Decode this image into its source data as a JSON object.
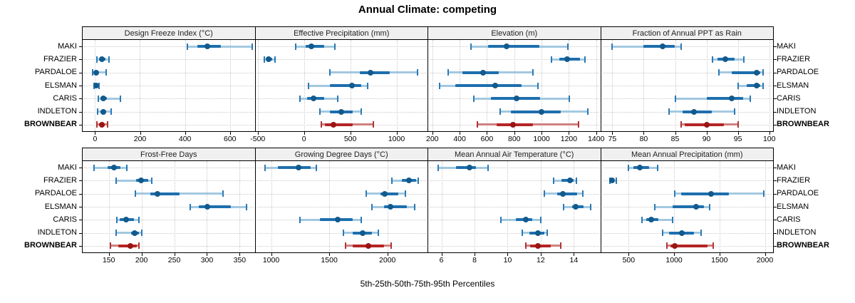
{
  "title": "Annual Climate: competing",
  "xlabel": "5th-25th-50th-75th-95th Percentiles",
  "percentiles": [
    "5th",
    "25th",
    "50th",
    "75th",
    "95th"
  ],
  "categories": [
    "MAKI",
    "FRAZIER",
    "PARDALOE",
    "ELSMAN",
    "CARIS",
    "INDLETON",
    "BROWNBEAR"
  ],
  "highlight_category": "BROWNBEAR",
  "colors": {
    "blue_whisker": "#a3c8e0",
    "blue_cap": "#2a7ab5",
    "blue_bar": "#1d6fae",
    "blue_dot": "#135a8c",
    "red_whisker": "#d08080",
    "red_cap": "#b03535",
    "red_bar": "#b52424",
    "red_dot": "#9a1414",
    "grid": "#c9c9c9",
    "strip_bg": "#f0f0f0"
  },
  "chart_data": [
    {
      "type": "scatter",
      "subtype": "percentile-dot-whisker",
      "title": "Design Freeze Index (°C)",
      "row": 0,
      "col": 0,
      "xlim": [
        -55,
        710
      ],
      "ticks": [
        0,
        200,
        400,
        600
      ],
      "tick_labels": [
        "0",
        "200",
        "400",
        "600"
      ],
      "series": [
        {
          "name": "MAKI",
          "values": [
            410,
            455,
            500,
            560,
            700
          ]
        },
        {
          "name": "FRAZIER",
          "values": [
            8,
            22,
            32,
            45,
            62
          ]
        },
        {
          "name": "PARDALOE",
          "values": [
            -10,
            0,
            6,
            16,
            48
          ]
        },
        {
          "name": "ELSMAN",
          "values": [
            -5,
            1,
            6,
            11,
            18
          ]
        },
        {
          "name": "CARIS",
          "values": [
            15,
            25,
            38,
            52,
            112
          ]
        },
        {
          "name": "INDLETON",
          "values": [
            12,
            25,
            36,
            50,
            73
          ]
        },
        {
          "name": "BROWNBEAR",
          "values": [
            8,
            20,
            32,
            43,
            56
          ]
        }
      ]
    },
    {
      "type": "scatter",
      "subtype": "percentile-dot-whisker",
      "title": "Effective Precipitation (mm)",
      "row": 0,
      "col": 1,
      "xlim": [
        -525,
        1335
      ],
      "ticks": [
        -500,
        0,
        500,
        1000
      ],
      "tick_labels": [
        "-500",
        "0",
        "500",
        "1000"
      ],
      "series": [
        {
          "name": "MAKI",
          "values": [
            -90,
            20,
            80,
            220,
            330
          ]
        },
        {
          "name": "FRAZIER",
          "values": [
            -430,
            -405,
            -385,
            -345,
            -315
          ]
        },
        {
          "name": "PARDALOE",
          "values": [
            280,
            600,
            720,
            930,
            1225
          ]
        },
        {
          "name": "ELSMAN",
          "values": [
            45,
            280,
            515,
            620,
            690
          ]
        },
        {
          "name": "CARIS",
          "values": [
            -45,
            30,
            105,
            215,
            365
          ]
        },
        {
          "name": "INDLETON",
          "values": [
            175,
            280,
            405,
            530,
            620
          ]
        },
        {
          "name": "BROWNBEAR",
          "values": [
            185,
            225,
            315,
            530,
            750
          ]
        }
      ]
    },
    {
      "type": "scatter",
      "subtype": "percentile-dot-whisker",
      "title": "Elevation (m)",
      "row": 0,
      "col": 2,
      "xlim": [
        170,
        1430
      ],
      "ticks": [
        200,
        400,
        600,
        800,
        1000,
        1200,
        1400
      ],
      "tick_labels": [
        "200",
        "400",
        "600",
        "800",
        "1000",
        "1200",
        "1400"
      ],
      "series": [
        {
          "name": "MAKI",
          "values": [
            485,
            610,
            745,
            985,
            1195
          ]
        },
        {
          "name": "FRAZIER",
          "values": [
            1070,
            1130,
            1185,
            1280,
            1320
          ]
        },
        {
          "name": "PARDALOE",
          "values": [
            315,
            420,
            570,
            685,
            935
          ]
        },
        {
          "name": "ELSMAN",
          "values": [
            255,
            370,
            660,
            855,
            975
          ]
        },
        {
          "name": "CARIS",
          "values": [
            505,
            630,
            815,
            990,
            1205
          ]
        },
        {
          "name": "INDLETON",
          "values": [
            695,
            775,
            1000,
            1140,
            1340
          ]
        },
        {
          "name": "BROWNBEAR",
          "values": [
            530,
            670,
            790,
            935,
            1270
          ]
        }
      ]
    },
    {
      "type": "scatter",
      "subtype": "percentile-dot-whisker",
      "title": "Fraction of Annual PPT as Rain",
      "row": 0,
      "col": 3,
      "xlim": [
        73.2,
        100.6
      ],
      "ticks": [
        75,
        80,
        85,
        90,
        95,
        100
      ],
      "tick_labels": [
        "75",
        "80",
        "85",
        "90",
        "95",
        "100"
      ],
      "series": [
        {
          "name": "MAKI",
          "values": [
            75,
            80,
            83,
            85,
            86
          ]
        },
        {
          "name": "FRAZIER",
          "values": [
            91,
            91.8,
            93,
            94.5,
            96
          ]
        },
        {
          "name": "PARDALOE",
          "values": [
            92,
            94,
            98,
            98.6,
            99
          ]
        },
        {
          "name": "ELSMAN",
          "values": [
            95,
            96.4,
            98,
            98.6,
            99
          ]
        },
        {
          "name": "CARIS",
          "values": [
            85,
            90,
            94,
            95.8,
            97
          ]
        },
        {
          "name": "INDLETON",
          "values": [
            84,
            86.2,
            88,
            90.8,
            94.5
          ]
        },
        {
          "name": "BROWNBEAR",
          "values": [
            86,
            86.5,
            90,
            92.8,
            95
          ]
        }
      ]
    },
    {
      "type": "scatter",
      "subtype": "percentile-dot-whisker",
      "title": "Frost-Free Days",
      "row": 1,
      "col": 0,
      "xlim": [
        110,
        373
      ],
      "ticks": [
        150,
        200,
        250,
        300,
        350
      ],
      "tick_labels": [
        "150",
        "200",
        "250",
        "300",
        "350"
      ],
      "series": [
        {
          "name": "MAKI",
          "values": [
            127,
            148,
            158,
            168,
            177
          ]
        },
        {
          "name": "FRAZIER",
          "values": [
            161,
            192,
            199,
            210,
            216
          ]
        },
        {
          "name": "PARDALOE",
          "values": [
            191,
            213,
            224,
            258,
            324
          ]
        },
        {
          "name": "ELSMAN",
          "values": [
            274,
            288,
            301,
            336,
            361
          ]
        },
        {
          "name": "CARIS",
          "values": [
            162,
            167,
            176,
            188,
            196
          ]
        },
        {
          "name": "INDLETON",
          "values": [
            161,
            184,
            190,
            196,
            200
          ]
        },
        {
          "name": "BROWNBEAR",
          "values": [
            153,
            164,
            183,
            193,
            196
          ]
        }
      ]
    },
    {
      "type": "scatter",
      "subtype": "percentile-dot-whisker",
      "title": "Growing Degree Days (°C)",
      "row": 1,
      "col": 1,
      "xlim": [
        865,
        2345
      ],
      "ticks": [
        1000,
        1500,
        2000
      ],
      "tick_labels": [
        "1000",
        "1500",
        "2000"
      ],
      "series": [
        {
          "name": "MAKI",
          "values": [
            945,
            1060,
            1235,
            1340,
            1390
          ]
        },
        {
          "name": "FRAZIER",
          "values": [
            2040,
            2125,
            2185,
            2250,
            2265
          ]
        },
        {
          "name": "PARDALOE",
          "values": [
            1815,
            1940,
            1980,
            2095,
            2155
          ]
        },
        {
          "name": "ELSMAN",
          "values": [
            1865,
            1970,
            2025,
            2170,
            2235
          ]
        },
        {
          "name": "CARIS",
          "values": [
            1250,
            1420,
            1570,
            1700,
            1775
          ]
        },
        {
          "name": "INDLETON",
          "values": [
            1620,
            1700,
            1785,
            1865,
            1925
          ]
        },
        {
          "name": "BROWNBEAR",
          "values": [
            1640,
            1700,
            1835,
            1970,
            2035
          ]
        }
      ]
    },
    {
      "type": "scatter",
      "subtype": "percentile-dot-whisker",
      "title": "Mean Annual Air Temperature (°C)",
      "row": 1,
      "col": 2,
      "xlim": [
        5.2,
        15.6
      ],
      "ticks": [
        6,
        8,
        10,
        12,
        14
      ],
      "tick_labels": [
        "6",
        "8",
        "10",
        "12",
        "14"
      ],
      "series": [
        {
          "name": "MAKI",
          "values": [
            5.8,
            6.9,
            7.7,
            8.1,
            8.8
          ]
        },
        {
          "name": "FRAZIER",
          "values": [
            12.8,
            13.25,
            13.75,
            14.0,
            14.15
          ]
        },
        {
          "name": "PARDALOE",
          "values": [
            12.2,
            13.0,
            13.35,
            14.2,
            14.55
          ]
        },
        {
          "name": "ELSMAN",
          "values": [
            13.4,
            13.9,
            14.1,
            14.6,
            15.0
          ]
        },
        {
          "name": "CARIS",
          "values": [
            9.6,
            10.5,
            11.1,
            11.5,
            12.0
          ]
        },
        {
          "name": "INDLETON",
          "values": [
            10.9,
            11.3,
            11.85,
            12.2,
            12.4
          ]
        },
        {
          "name": "BROWNBEAR",
          "values": [
            11.1,
            11.35,
            11.85,
            12.6,
            13.2
          ]
        }
      ]
    },
    {
      "type": "scatter",
      "subtype": "percentile-dot-whisker",
      "title": "Mean Annual Precipitation (mm)",
      "row": 1,
      "col": 3,
      "xlim": [
        195,
        2090
      ],
      "ticks": [
        500,
        1000,
        1500,
        2000
      ],
      "tick_labels": [
        "500",
        "1000",
        "1500",
        "2000"
      ],
      "series": [
        {
          "name": "MAKI",
          "values": [
            495,
            550,
            625,
            725,
            820
          ]
        },
        {
          "name": "FRAZIER",
          "values": [
            295,
            305,
            320,
            335,
            360
          ]
        },
        {
          "name": "PARDALOE",
          "values": [
            1010,
            1080,
            1410,
            1600,
            1990
          ]
        },
        {
          "name": "ELSMAN",
          "values": [
            790,
            985,
            1245,
            1325,
            1390
          ]
        },
        {
          "name": "CARIS",
          "values": [
            650,
            690,
            750,
            830,
            985
          ]
        },
        {
          "name": "INDLETON",
          "values": [
            870,
            945,
            1085,
            1220,
            1295
          ]
        },
        {
          "name": "BROWNBEAR",
          "values": [
            920,
            960,
            1010,
            1365,
            1430
          ]
        }
      ]
    }
  ]
}
